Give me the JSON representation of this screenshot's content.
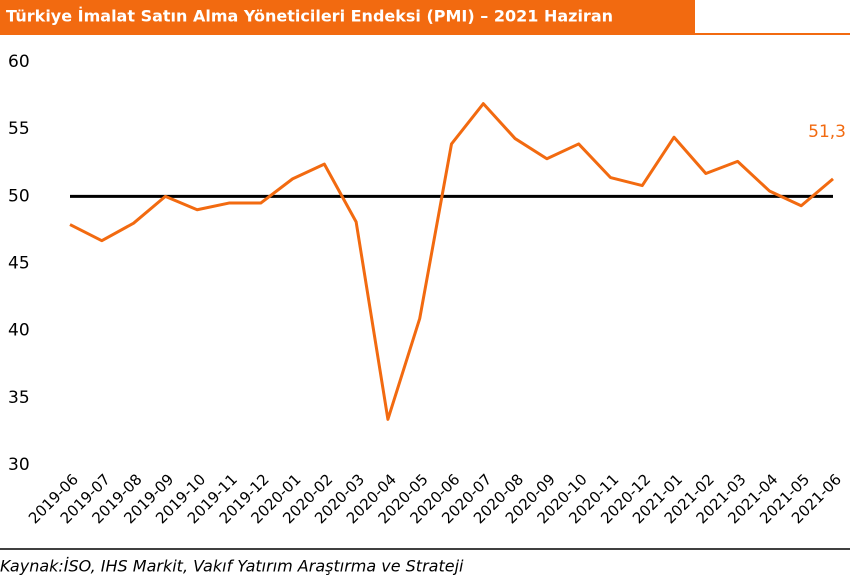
{
  "chart_data": {
    "type": "line",
    "title": "Türkiye İmalat Satın Alma Yöneticileri Endeksi (PMI) – 2021 Haziran",
    "source": "Kaynak:İSO, IHS Markit, Vakıf Yatırım Araştırma ve Strateji",
    "categories": [
      "2019-06",
      "2019-07",
      "2019-08",
      "2019-09",
      "2019-10",
      "2019-11",
      "2019-12",
      "2020-01",
      "2020-02",
      "2020-03",
      "2020-04",
      "2020-05",
      "2020-06",
      "2020-07",
      "2020-08",
      "2020-09",
      "2020-10",
      "2020-11",
      "2020-12",
      "2021-01",
      "2021-02",
      "2021-03",
      "2021-04",
      "2021-05",
      "2021-06"
    ],
    "series": [
      {
        "name": "PMI",
        "color": "#f26a10",
        "values": [
          47.9,
          46.7,
          48.0,
          50.0,
          49.0,
          49.5,
          49.5,
          51.3,
          52.4,
          48.1,
          33.4,
          40.9,
          53.9,
          56.9,
          54.3,
          52.8,
          53.9,
          51.4,
          50.8,
          54.4,
          51.7,
          52.6,
          50.4,
          49.3,
          51.3
        ],
        "value_labels": [
          null,
          null,
          null,
          null,
          null,
          null,
          null,
          null,
          null,
          null,
          null,
          null,
          null,
          null,
          null,
          null,
          null,
          null,
          null,
          null,
          null,
          null,
          null,
          null,
          "51,3"
        ]
      }
    ],
    "hline": {
      "value": 50,
      "color": "#000000"
    },
    "ylim": [
      30,
      60
    ],
    "yticks": [
      30,
      35,
      40,
      45,
      50,
      55,
      60
    ]
  }
}
